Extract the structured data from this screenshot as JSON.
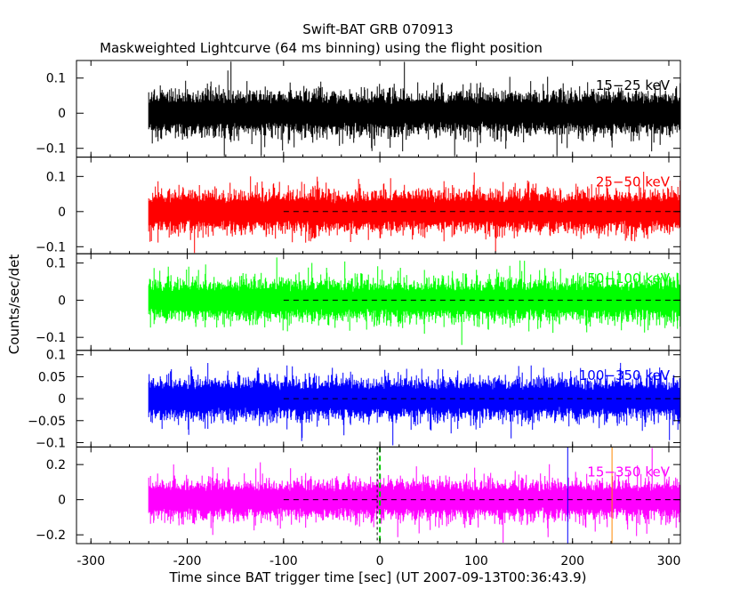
{
  "chart_data": {
    "type": "line",
    "title": "Swift-BAT GRB 070913",
    "subtitle": "Maskweighted Lightcurve (64 ms binning) using the flight position",
    "xlabel": "Time since BAT trigger time [sec] (UT 2007-09-13T00:36:43.9)",
    "ylabel": "Counts/sec/det",
    "xlim": [
      -315,
      312
    ],
    "x_ticks": [
      "-300",
      "-200",
      "-100",
      "0",
      "100",
      "200",
      "300"
    ],
    "x_tick_values": [
      -300,
      -200,
      -100,
      0,
      100,
      200,
      300
    ],
    "data_range": [
      -240,
      312
    ],
    "background_line_start": -100,
    "grid": false,
    "panels": [
      {
        "name": "15-25 keV",
        "label": "15−25 keV",
        "color": "#000000",
        "ylim": [
          -0.125,
          0.15
        ],
        "y_ticks": [
          "0.1",
          "0",
          "−0.1"
        ],
        "y_tick_values": [
          0.1,
          0,
          -0.1
        ],
        "noise_amplitude": 0.042,
        "show_zero_line": false
      },
      {
        "name": "25-50 keV",
        "label": "25−50 keV",
        "color": "#ff0000",
        "ylim": [
          -0.12,
          0.155
        ],
        "y_ticks": [
          "0.1",
          "0",
          "−0.1"
        ],
        "y_tick_values": [
          0.1,
          0,
          -0.1
        ],
        "noise_amplitude": 0.04,
        "show_zero_line": true
      },
      {
        "name": "50-100 keV",
        "label": "50−100 keV",
        "color": "#00ff00",
        "ylim": [
          -0.135,
          0.125
        ],
        "y_ticks": [
          "0.1",
          "0",
          "−0.1"
        ],
        "y_tick_values": [
          0.1,
          0,
          -0.1
        ],
        "noise_amplitude": 0.038,
        "show_zero_line": true
      },
      {
        "name": "100-350 keV",
        "label": "100−350 keV",
        "color": "#0000ff",
        "ylim": [
          -0.11,
          0.11
        ],
        "y_ticks": [
          "0.1",
          "0.05",
          "0",
          "−0.05",
          "−0.1"
        ],
        "y_tick_values": [
          0.1,
          0.05,
          0,
          -0.05,
          -0.1
        ],
        "noise_amplitude": 0.032,
        "show_zero_line": true
      },
      {
        "name": "15-350 keV",
        "label": "15−350 keV",
        "color": "#ff00ff",
        "ylim": [
          -0.25,
          0.3
        ],
        "y_ticks": [
          "0.2",
          "0",
          "−0.2"
        ],
        "y_tick_values": [
          0.2,
          0,
          -0.2
        ],
        "noise_amplitude": 0.075,
        "show_zero_line": true
      }
    ],
    "markers": [
      {
        "name": "trigger-time",
        "x": 0,
        "color": "#00cc00",
        "style": "dashed"
      },
      {
        "name": "interval-start",
        "x": 195,
        "color": "#0000ff",
        "style": "solid"
      },
      {
        "name": "interval-end",
        "x": 241,
        "color": "#ff8800",
        "style": "solid"
      }
    ]
  }
}
